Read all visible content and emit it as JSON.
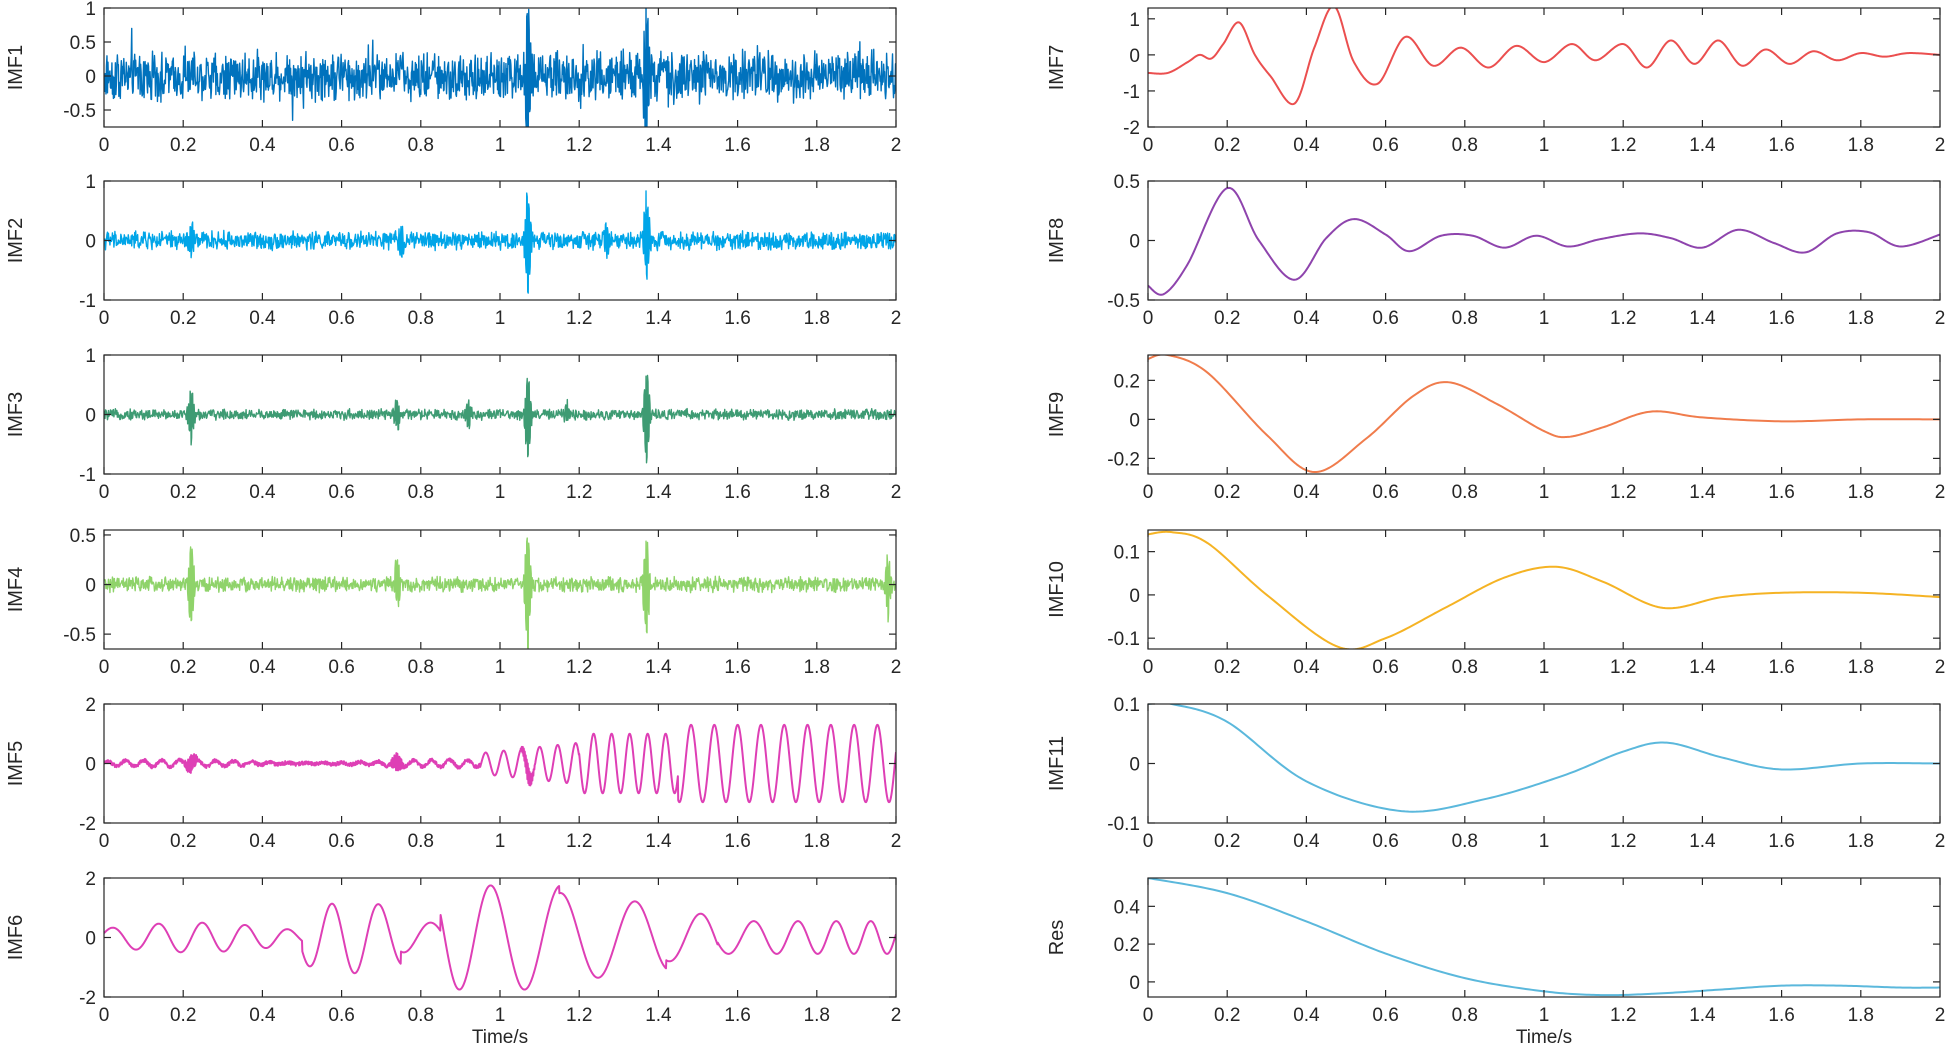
{
  "chart_data": [
    {
      "type": "line",
      "name": "IMF1",
      "ylabel": "IMF1",
      "color": "#0072BD",
      "signal": "noise",
      "amp": 0.28,
      "xlim": [
        0,
        2
      ],
      "ylim": [
        -0.75,
        1
      ],
      "yticks": [
        -0.5,
        0,
        0.5,
        1
      ],
      "ytick_labels": [
        "-0.5",
        "0",
        "0.5",
        "1"
      ],
      "spikes": [
        [
          1.07,
          1.0,
          -1.0
        ],
        [
          1.37,
          1.0,
          -1.0
        ]
      ],
      "xticks": [
        0,
        0.2,
        0.4,
        0.6,
        0.8,
        1,
        1.2,
        1.4,
        1.6,
        1.8,
        2
      ],
      "xtick_labels": [
        "0",
        "0.2",
        "0.4",
        "0.6",
        "0.8",
        "1",
        "1.2",
        "1.4",
        "1.6",
        "1.8",
        "2"
      ],
      "xlabel": ""
    },
    {
      "type": "line",
      "name": "IMF2",
      "ylabel": "IMF2",
      "color": "#00A5E8",
      "signal": "noise",
      "amp": 0.12,
      "xlim": [
        0,
        2
      ],
      "ylim": [
        -1,
        1
      ],
      "yticks": [
        -1,
        0,
        1
      ],
      "ytick_labels": [
        "-1",
        "0",
        "1"
      ],
      "spikes": [
        [
          0.22,
          0.3,
          -0.25
        ],
        [
          1.07,
          0.85,
          -0.85
        ],
        [
          1.37,
          0.85,
          -0.65
        ],
        [
          0.75,
          0.2,
          -0.2
        ],
        [
          1.27,
          0.25,
          -0.2
        ]
      ],
      "xticks": [
        0,
        0.2,
        0.4,
        0.6,
        0.8,
        1,
        1.2,
        1.4,
        1.6,
        1.8,
        2
      ],
      "xtick_labels": [
        "0",
        "0.2",
        "0.4",
        "0.6",
        "0.8",
        "1",
        "1.2",
        "1.4",
        "1.6",
        "1.8",
        "2"
      ],
      "xlabel": ""
    },
    {
      "type": "line",
      "name": "IMF3",
      "ylabel": "IMF3",
      "color": "#3E9B73",
      "signal": "noise",
      "amp": 0.07,
      "xlim": [
        0,
        2
      ],
      "ylim": [
        -1,
        1
      ],
      "yticks": [
        -1,
        0,
        1
      ],
      "ytick_labels": [
        "-1",
        "0",
        "1"
      ],
      "spikes": [
        [
          0.22,
          0.45,
          -0.45
        ],
        [
          0.74,
          0.25,
          -0.25
        ],
        [
          1.07,
          0.7,
          -0.75
        ],
        [
          1.37,
          0.75,
          -0.75
        ],
        [
          0.92,
          0.2,
          -0.2
        ],
        [
          1.17,
          0.2,
          -0.15
        ]
      ],
      "xticks": [
        0,
        0.2,
        0.4,
        0.6,
        0.8,
        1,
        1.2,
        1.4,
        1.6,
        1.8,
        2
      ],
      "xtick_labels": [
        "0",
        "0.2",
        "0.4",
        "0.6",
        "0.8",
        "1",
        "1.2",
        "1.4",
        "1.6",
        "1.8",
        "2"
      ],
      "xlabel": ""
    },
    {
      "type": "line",
      "name": "IMF4",
      "ylabel": "IMF4",
      "color": "#8FD36A",
      "signal": "noise",
      "amp": 0.06,
      "xlim": [
        0,
        2
      ],
      "ylim": [
        -0.65,
        0.55
      ],
      "yticks": [
        -0.5,
        0,
        0.5
      ],
      "ytick_labels": [
        "-0.5",
        "0",
        "0.5"
      ],
      "spikes": [
        [
          0.22,
          0.4,
          -0.4
        ],
        [
          0.74,
          0.3,
          -0.25
        ],
        [
          1.07,
          0.55,
          -0.65
        ],
        [
          1.37,
          0.45,
          -0.5
        ],
        [
          1.98,
          0.3,
          -0.3
        ]
      ],
      "xticks": [
        0,
        0.2,
        0.4,
        0.6,
        0.8,
        1,
        1.2,
        1.4,
        1.6,
        1.8,
        2
      ],
      "xtick_labels": [
        "0",
        "0.2",
        "0.4",
        "0.6",
        "0.8",
        "1",
        "1.2",
        "1.4",
        "1.6",
        "1.8",
        "2"
      ],
      "xlabel": ""
    },
    {
      "type": "line",
      "name": "IMF5",
      "ylabel": "IMF5",
      "color": "#DE3FB5",
      "signal": "imf5",
      "xlim": [
        0,
        2
      ],
      "ylim": [
        -2,
        2
      ],
      "yticks": [
        -2,
        0,
        2
      ],
      "ytick_labels": [
        "-2",
        "0",
        "2"
      ],
      "xticks": [
        0,
        0.2,
        0.4,
        0.6,
        0.8,
        1,
        1.2,
        1.4,
        1.6,
        1.8,
        2
      ],
      "xtick_labels": [
        "0",
        "0.2",
        "0.4",
        "0.6",
        "0.8",
        "1",
        "1.2",
        "1.4",
        "1.6",
        "1.8",
        "2"
      ],
      "xlabel": ""
    },
    {
      "type": "line",
      "name": "IMF6",
      "ylabel": "IMF6",
      "color": "#DE3FB5",
      "signal": "imf6",
      "xlim": [
        0,
        2
      ],
      "ylim": [
        -2,
        2
      ],
      "yticks": [
        -2,
        0,
        2
      ],
      "ytick_labels": [
        "-2",
        "0",
        "2"
      ],
      "xticks": [
        0,
        0.2,
        0.4,
        0.6,
        0.8,
        1,
        1.2,
        1.4,
        1.6,
        1.8,
        2
      ],
      "xtick_labels": [
        "0",
        "0.2",
        "0.4",
        "0.6",
        "0.8",
        "1",
        "1.2",
        "1.4",
        "1.6",
        "1.8",
        "2"
      ],
      "xlabel": "Time/s"
    },
    {
      "type": "line",
      "name": "IMF7",
      "ylabel": "IMF7",
      "color": "#EB4F4F",
      "signal": "points",
      "x": [
        0,
        0.05,
        0.1,
        0.13,
        0.16,
        0.19,
        0.23,
        0.27,
        0.31,
        0.37,
        0.42,
        0.47,
        0.52,
        0.58,
        0.65,
        0.72,
        0.79,
        0.86,
        0.93,
        1,
        1.07,
        1.13,
        1.2,
        1.26,
        1.32,
        1.38,
        1.44,
        1.5,
        1.56,
        1.62,
        1.68,
        1.74,
        1.8,
        1.86,
        1.92,
        2
      ],
      "y": [
        -0.5,
        -0.5,
        -0.2,
        0,
        -0.1,
        0.3,
        0.9,
        0.0,
        -0.6,
        -1.35,
        0.2,
        1.35,
        -0.2,
        -0.8,
        0.5,
        -0.3,
        0.2,
        -0.35,
        0.25,
        -0.2,
        0.3,
        -0.15,
        0.3,
        -0.35,
        0.4,
        -0.25,
        0.4,
        -0.3,
        0.15,
        -0.25,
        0.1,
        -0.15,
        0.05,
        -0.05,
        0.05,
        0.0
      ],
      "xlim": [
        0,
        2
      ],
      "ylim": [
        -2,
        1.3
      ],
      "yticks": [
        -2,
        -1,
        0,
        1
      ],
      "ytick_labels": [
        "-2",
        "-1",
        "0",
        "1"
      ],
      "xticks": [
        0,
        0.2,
        0.4,
        0.6,
        0.8,
        1,
        1.2,
        1.4,
        1.6,
        1.8,
        2
      ],
      "xtick_labels": [
        "0",
        "0.2",
        "0.4",
        "0.6",
        "0.8",
        "1",
        "1.2",
        "1.4",
        "1.6",
        "1.8",
        "2"
      ],
      "xlabel": ""
    },
    {
      "type": "line",
      "name": "IMF8",
      "ylabel": "IMF8",
      "color": "#8E44AD",
      "signal": "points",
      "x": [
        0,
        0.04,
        0.1,
        0.2,
        0.28,
        0.37,
        0.45,
        0.52,
        0.6,
        0.66,
        0.74,
        0.82,
        0.9,
        0.98,
        1.06,
        1.14,
        1.24,
        1.32,
        1.4,
        1.49,
        1.58,
        1.66,
        1.74,
        1.82,
        1.9,
        2
      ],
      "y": [
        -0.38,
        -0.45,
        -0.2,
        0.44,
        0.0,
        -0.33,
        0.02,
        0.18,
        0.05,
        -0.09,
        0.04,
        0.04,
        -0.06,
        0.04,
        -0.05,
        0.01,
        0.06,
        0.02,
        -0.06,
        0.09,
        -0.02,
        -0.1,
        0.06,
        0.07,
        -0.05,
        0.05
      ],
      "xlim": [
        0,
        2
      ],
      "ylim": [
        -0.5,
        0.5
      ],
      "yticks": [
        -0.5,
        0,
        0.5
      ],
      "ytick_labels": [
        "-0.5",
        "0",
        "0.5"
      ],
      "xticks": [
        0,
        0.2,
        0.4,
        0.6,
        0.8,
        1,
        1.2,
        1.4,
        1.6,
        1.8,
        2
      ],
      "xtick_labels": [
        "0",
        "0.2",
        "0.4",
        "0.6",
        "0.8",
        "1",
        "1.2",
        "1.4",
        "1.6",
        "1.8",
        "2"
      ],
      "xlabel": ""
    },
    {
      "type": "line",
      "name": "IMF9",
      "ylabel": "IMF9",
      "color": "#F07C4C",
      "signal": "points",
      "x": [
        0,
        0.05,
        0.15,
        0.3,
        0.42,
        0.55,
        0.67,
        0.76,
        0.88,
        1,
        1.06,
        1.15,
        1.27,
        1.4,
        1.6,
        1.8,
        2
      ],
      "y": [
        0.31,
        0.33,
        0.24,
        -0.08,
        -0.27,
        -0.1,
        0.12,
        0.19,
        0.08,
        -0.06,
        -0.09,
        -0.04,
        0.04,
        0.01,
        -0.01,
        0.0,
        0.0
      ],
      "xlim": [
        0,
        2
      ],
      "ylim": [
        -0.28,
        0.33
      ],
      "yticks": [
        -0.2,
        0,
        0.2
      ],
      "ytick_labels": [
        "-0.2",
        "0",
        "0.2"
      ],
      "xticks": [
        0,
        0.2,
        0.4,
        0.6,
        0.8,
        1,
        1.2,
        1.4,
        1.6,
        1.8,
        2
      ],
      "xtick_labels": [
        "0",
        "0.2",
        "0.4",
        "0.6",
        "0.8",
        "1",
        "1.2",
        "1.4",
        "1.6",
        "1.8",
        "2"
      ],
      "xlabel": ""
    },
    {
      "type": "line",
      "name": "IMF10",
      "ylabel": "IMF10",
      "color": "#F5B324",
      "signal": "points",
      "x": [
        0,
        0.06,
        0.15,
        0.3,
        0.48,
        0.6,
        0.75,
        0.9,
        1.03,
        1.15,
        1.3,
        1.45,
        1.6,
        1.8,
        2
      ],
      "y": [
        0.14,
        0.145,
        0.12,
        0.0,
        -0.12,
        -0.1,
        -0.03,
        0.04,
        0.065,
        0.03,
        -0.03,
        -0.005,
        0.005,
        0.005,
        -0.005
      ],
      "xlim": [
        0,
        2
      ],
      "ylim": [
        -0.125,
        0.15
      ],
      "yticks": [
        -0.1,
        0,
        0.1
      ],
      "ytick_labels": [
        "-0.1",
        "0",
        "0.1"
      ],
      "xticks": [
        0,
        0.2,
        0.4,
        0.6,
        0.8,
        1,
        1.2,
        1.4,
        1.6,
        1.8,
        2
      ],
      "xtick_labels": [
        "0",
        "0.2",
        "0.4",
        "0.6",
        "0.8",
        "1",
        "1.2",
        "1.4",
        "1.6",
        "1.8",
        "2"
      ],
      "xlabel": ""
    },
    {
      "type": "line",
      "name": "IMF11",
      "ylabel": "IMF11",
      "color": "#5BB8DC",
      "signal": "points",
      "x": [
        0,
        0.06,
        0.2,
        0.4,
        0.64,
        0.85,
        1.05,
        1.2,
        1.31,
        1.45,
        1.6,
        1.8,
        2
      ],
      "y": [
        0.1,
        0.1,
        0.07,
        -0.03,
        -0.08,
        -0.06,
        -0.02,
        0.02,
        0.035,
        0.01,
        -0.01,
        0.0,
        0.0
      ],
      "xlim": [
        0,
        2
      ],
      "ylim": [
        -0.1,
        0.1
      ],
      "yticks": [
        -0.1,
        0,
        0.1
      ],
      "ytick_labels": [
        "-0.1",
        "0",
        "0.1"
      ],
      "xticks": [
        0,
        0.2,
        0.4,
        0.6,
        0.8,
        1,
        1.2,
        1.4,
        1.6,
        1.8,
        2
      ],
      "xtick_labels": [
        "0",
        "0.2",
        "0.4",
        "0.6",
        "0.8",
        "1",
        "1.2",
        "1.4",
        "1.6",
        "1.8",
        "2"
      ],
      "xlabel": ""
    },
    {
      "type": "line",
      "name": "Res",
      "ylabel": "Res",
      "color": "#5BB8DC",
      "signal": "points",
      "x": [
        0,
        0.2,
        0.4,
        0.6,
        0.8,
        1,
        1.15,
        1.3,
        1.45,
        1.6,
        1.75,
        1.9,
        2
      ],
      "y": [
        0.55,
        0.47,
        0.32,
        0.15,
        0.02,
        -0.05,
        -0.07,
        -0.06,
        -0.04,
        -0.02,
        -0.02,
        -0.03,
        -0.03
      ],
      "xlim": [
        0,
        2
      ],
      "ylim": [
        -0.08,
        0.55
      ],
      "yticks": [
        0,
        0.2,
        0.4
      ],
      "ytick_labels": [
        "0",
        "0.2",
        "0.4"
      ],
      "xticks": [
        0,
        0.2,
        0.4,
        0.6,
        0.8,
        1,
        1.2,
        1.4,
        1.6,
        1.8,
        2
      ],
      "xtick_labels": [
        "0",
        "0.2",
        "0.4",
        "0.6",
        "0.8",
        "1",
        "1.2",
        "1.4",
        "1.6",
        "1.8",
        "2"
      ],
      "xlabel": "Time/s"
    }
  ]
}
